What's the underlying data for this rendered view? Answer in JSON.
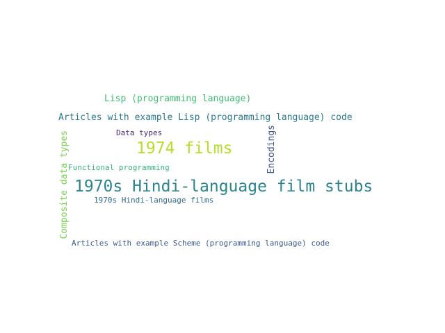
{
  "words": [
    {
      "text": "Lisp (programming language)",
      "color": "#3fbc73"
    },
    {
      "text": "Articles with example Lisp (programming language) code",
      "color": "#2a788e"
    },
    {
      "text": "Data types",
      "color": "#482475"
    },
    {
      "text": "1974 films",
      "color": "#b5de2b"
    },
    {
      "text": "Encodings",
      "color": "#3b528b"
    },
    {
      "text": "Composite data types",
      "color": "#7ad151"
    },
    {
      "text": "Functional programming",
      "color": "#35b779"
    },
    {
      "text": "1970s Hindi-language film stubs",
      "color": "#2c848e"
    },
    {
      "text": "1970s Hindi-language films",
      "color": "#31688e"
    },
    {
      "text": "Articles with example Scheme (programming language) code",
      "color": "#38598c"
    }
  ]
}
